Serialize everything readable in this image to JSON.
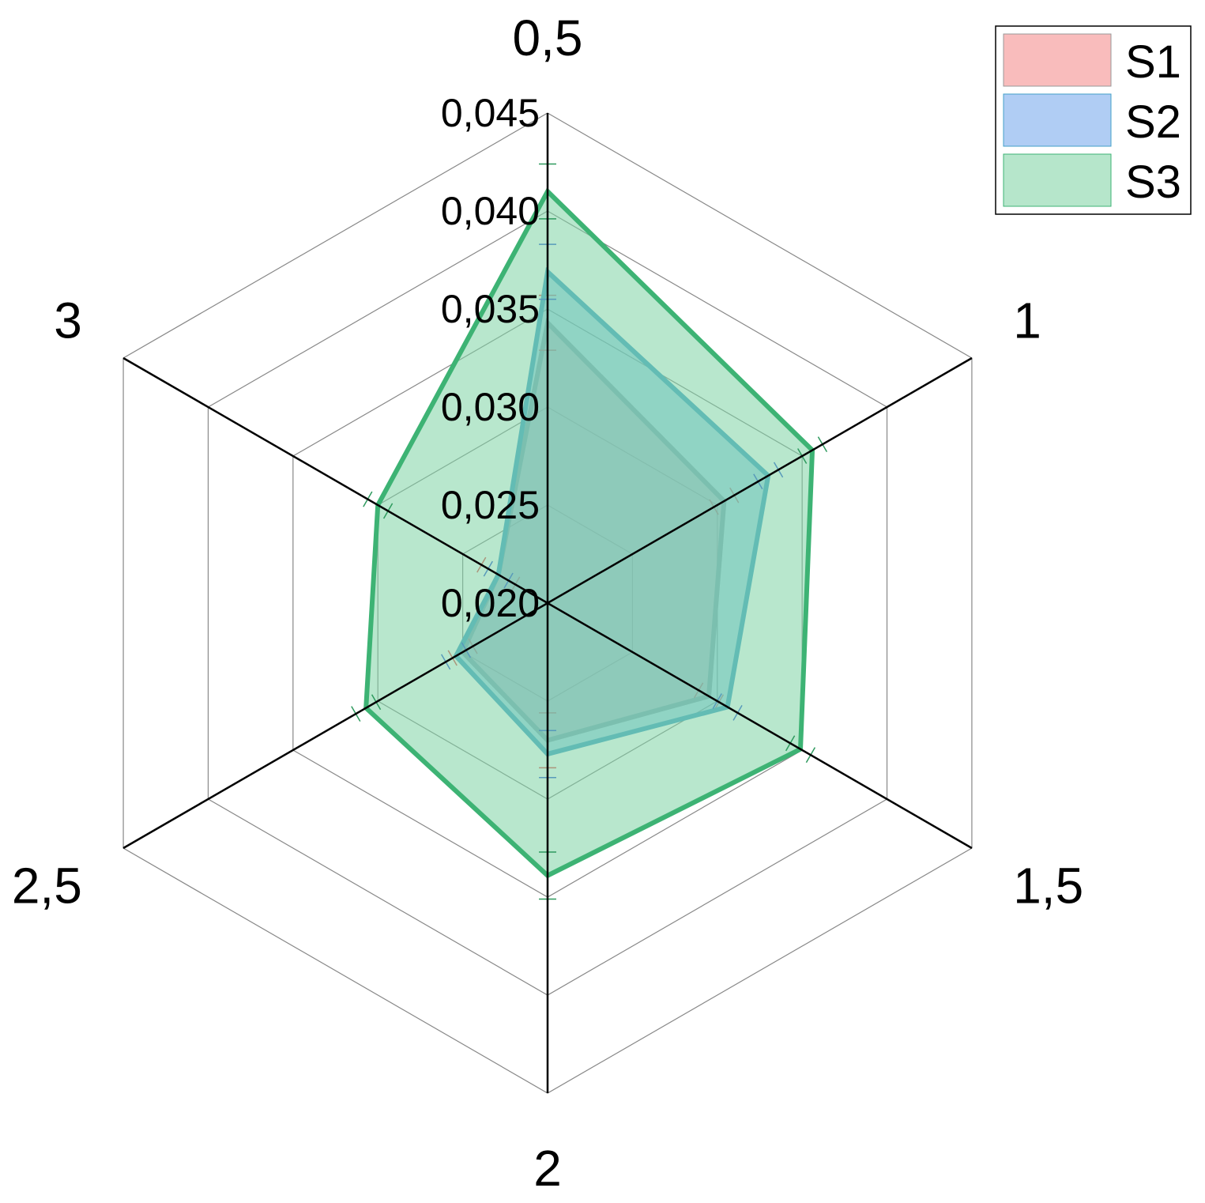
{
  "chart_data": {
    "type": "radar",
    "categories": [
      "0,5",
      "1",
      "1,5",
      "2",
      "2,5",
      "3"
    ],
    "rlim": [
      0.02,
      0.045
    ],
    "rticks": [
      0.02,
      0.025,
      0.03,
      0.035,
      0.04,
      0.045
    ],
    "rtick_labels": [
      "0,020",
      "0,025",
      "0,030",
      "0,035",
      "0,040",
      "0,045"
    ],
    "grid": true,
    "legend_position": "top-right",
    "series": [
      {
        "name": "S1",
        "values": [
          0.0343,
          0.0304,
          0.0295,
          0.027,
          0.025,
          0.0229
        ],
        "error": [
          0.0014,
          0.0006,
          0.0006,
          0.0014,
          0.0006,
          0.001
        ],
        "line_color": "#999999",
        "fill_color": "#f4a6a6",
        "legend_fill": "#f9bcbc",
        "error_color": "#e34a4a"
      },
      {
        "name": "S2",
        "values": [
          0.0369,
          0.033,
          0.0306,
          0.0277,
          0.0254,
          0.0229
        ],
        "error": [
          0.0014,
          0.0006,
          0.0006,
          0.0012,
          0.0006,
          0.0006
        ],
        "line_color": "#43a0c8",
        "fill_color": "#5cb0d8",
        "legend_fill": "#b0cdf4",
        "error_color": "#2a54d6"
      },
      {
        "name": "S3",
        "values": [
          0.041,
          0.0356,
          0.0349,
          0.0339,
          0.0307,
          0.03
        ],
        "error": [
          0.0014,
          0.0006,
          0.0006,
          0.0012,
          0.0006,
          0.0006
        ],
        "line_color": "#3db374",
        "fill_color": "#7ed3a4",
        "legend_fill": "#b6e6cb",
        "error_color": "#2e9a5e"
      }
    ]
  }
}
